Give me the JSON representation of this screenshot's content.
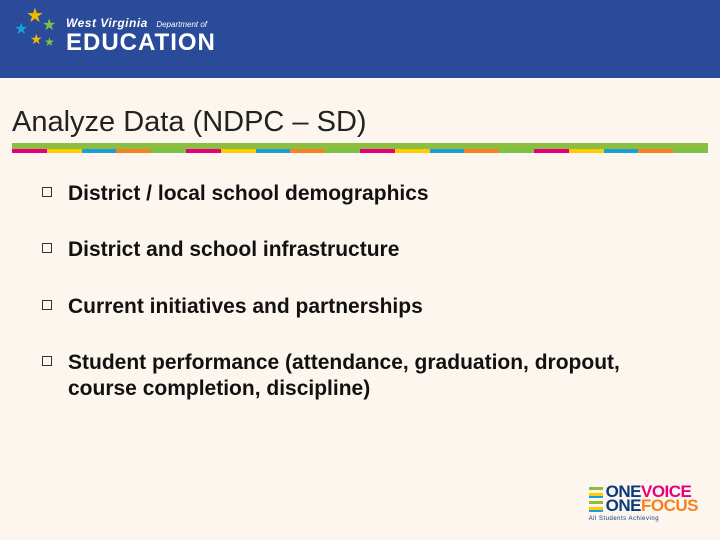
{
  "header": {
    "logo_line1_wv": "West Virginia",
    "logo_line1_dept": "Department of",
    "logo_line2": "EDUCATION",
    "band_color": "#2a4a9a",
    "star_colors": [
      "#f5b800",
      "#7cc243",
      "#1aa0d8",
      "#f5b800",
      "#7cc243"
    ]
  },
  "title": "Analyze Data (NDPC – SD)",
  "stripe": {
    "main_color": "#8cbf3f",
    "segments": [
      "#e6007e",
      "#ffcc00",
      "#1aa0d8",
      "#f58220",
      "#7cc243",
      "#e6007e",
      "#ffcc00",
      "#1aa0d8",
      "#f58220",
      "#7cc243"
    ]
  },
  "bullets": [
    "District / local school demographics",
    "District and school infrastructure",
    "Current initiatives and partnerships",
    "Student performance (attendance, graduation, dropout, course completion, discipline)"
  ],
  "footer_logo": {
    "one": "ONE",
    "voice": "VOICE",
    "focus": "FOCUS",
    "tagline": "All Students Achieving",
    "one_color": "#0a3a7a",
    "voice_color": "#e6007e",
    "focus_color": "#f58220"
  },
  "background_color": "#fdf6ef"
}
